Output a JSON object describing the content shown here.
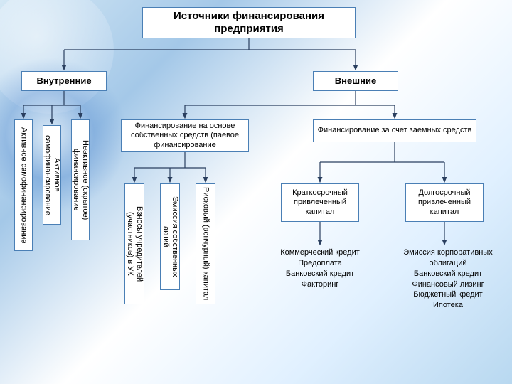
{
  "title": "Источники финансирования предприятия",
  "level1": {
    "internal": "Внутренние",
    "external": "Внешние"
  },
  "internal_children": {
    "active_self": "Активное самофинансирование",
    "reactive_hidden": "Неактивное (скрытое) финансирование"
  },
  "external_level2": {
    "own_funds": "Финансирование на основе собственных средств (паевое финансирование",
    "borrowed": "Финансирование за счет заемных средств"
  },
  "own_funds_children": {
    "contributions": "Взносы учредителей (участников) в УК",
    "emission_shares": "Эмиссия собственных акций",
    "venture": "Рисковый (венчурный) капитал"
  },
  "borrowed_children": {
    "short_term": "Краткосрочный привлеченный капитал",
    "long_term": "Долгосрочный привлеченный капитал"
  },
  "short_term_items": "Коммерческий кредит\nПредоплата\nБанковский кредит\nФакторинг",
  "long_term_items": "Эмиссия корпоративных облигаций\nБанковский кредит\nФинансовый лизинг\nБюджетный кредит\nИпотека",
  "styling": {
    "box_border": "#4a7fb5",
    "box_bg": "#ffffff",
    "connector_color": "#2a3f5f",
    "title_fontsize": 15,
    "level1_fontsize": 13,
    "body_fontsize": 11
  }
}
